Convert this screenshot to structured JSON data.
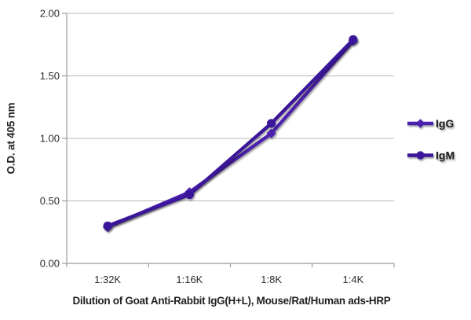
{
  "chart_data": {
    "type": "line",
    "title": "",
    "categories": [
      "1:32K",
      "1:16K",
      "1:8K",
      "1:4K"
    ],
    "series": [
      {
        "name": "IgG",
        "marker": "diamond",
        "color": "#4C22AE",
        "values": [
          0.29,
          0.57,
          1.04,
          1.78
        ]
      },
      {
        "name": "IgM",
        "marker": "circle",
        "color": "#3B189B",
        "values": [
          0.3,
          0.55,
          1.12,
          1.79
        ]
      }
    ],
    "xlabel": "Dilution of Goat Anti-Rabbit IgG(H+L), Mouse/Rat/Human ads-HRP",
    "ylabel": "O.D. at 405 nm",
    "ylim": [
      0.0,
      2.0
    ],
    "yticks": [
      0.0,
      0.5,
      1.0,
      1.5,
      2.0
    ],
    "ytick_labels": [
      "0.00",
      "0.50",
      "1.00",
      "1.50",
      "2.00"
    ],
    "grid": true,
    "legend_position": "right",
    "colors": {
      "gridline": "#b9b9b9",
      "axis": "#9b9b9b",
      "tick_text": "#2b2b2b",
      "title_text": "#231f20",
      "background": "#ffffff"
    }
  }
}
